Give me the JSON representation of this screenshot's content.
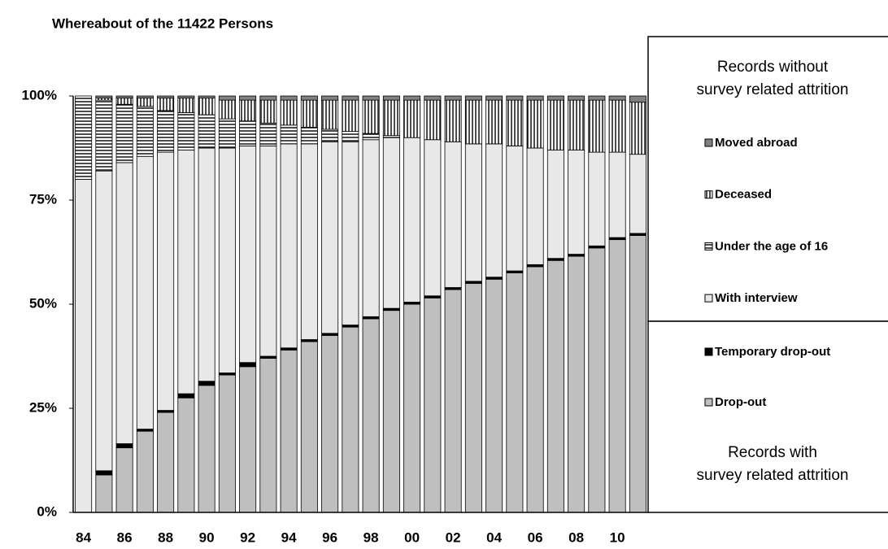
{
  "chart_data": {
    "type": "stacked_bar",
    "title": "Whereabout of the 11422 Persons",
    "categories": [
      "84",
      null,
      "86",
      null,
      "88",
      null,
      "90",
      null,
      "92",
      null,
      "94",
      null,
      "96",
      null,
      "98",
      null,
      "00",
      null,
      "02",
      null,
      "04",
      null,
      "06",
      null,
      "08",
      null,
      "10",
      null
    ],
    "series": [
      {
        "name": "Drop-out",
        "color": "#bfbfbf",
        "values": [
          0,
          9,
          15.5,
          19.5,
          24,
          27.5,
          30.5,
          33,
          35,
          37,
          39,
          41,
          42.5,
          44.5,
          46.5,
          48.5,
          50,
          51.5,
          53.5,
          55,
          56,
          57.5,
          59,
          60.5,
          61.5,
          63.5,
          65.5,
          66.5
        ]
      },
      {
        "name": "Temporary drop-out",
        "color": "#000000",
        "values": [
          0,
          1,
          1,
          0.5,
          0.5,
          1,
          1,
          0.5,
          1,
          0.5,
          0.5,
          0.5,
          0.5,
          0.5,
          0.5,
          0.5,
          0.5,
          0.5,
          0.5,
          0.5,
          0.5,
          0.5,
          0.5,
          0.5,
          0.5,
          0.5,
          0.5,
          0.5
        ]
      },
      {
        "name": "With interview",
        "color": "#e8e8e8",
        "values": [
          80,
          72,
          67.5,
          65.5,
          62,
          58.5,
          56,
          54,
          52,
          50.5,
          49,
          47,
          46,
          44,
          42.5,
          41,
          39.5,
          37.5,
          35,
          33,
          32,
          30,
          28,
          26,
          25,
          22.5,
          20.5,
          19
        ]
      },
      {
        "name": "Under the age of 16",
        "color": "#ffffff",
        "pattern": "horizontal",
        "values": [
          20,
          17,
          14,
          12,
          10,
          9,
          8,
          7,
          6,
          5.5,
          4.5,
          4,
          3,
          2.5,
          1.5,
          0.5,
          0,
          0,
          0,
          0,
          0,
          0,
          0,
          0,
          0,
          0,
          0,
          0
        ]
      },
      {
        "name": "Deceased",
        "color": "#ffffff",
        "pattern": "vertical",
        "values": [
          0,
          0.5,
          1.5,
          2,
          3,
          3.5,
          4,
          4.5,
          5,
          5.5,
          6,
          6.5,
          7,
          7.5,
          8,
          8.5,
          9,
          9.5,
          10,
          10.5,
          10.5,
          11,
          11.5,
          12,
          12,
          12.5,
          12.5,
          12.5
        ]
      },
      {
        "name": "Moved abroad",
        "color": "#808080",
        "values": [
          0,
          0.5,
          0.5,
          0.5,
          0.5,
          0.5,
          0.5,
          1,
          1,
          1,
          1,
          1,
          1,
          1,
          1,
          1,
          1,
          1,
          1,
          1,
          1,
          1,
          1,
          1,
          1,
          1,
          1,
          1.5
        ]
      }
    ],
    "ylim": [
      0,
      100
    ],
    "yticks": [
      {
        "value": 0,
        "label": "0%"
      },
      {
        "value": 25,
        "label": "25%"
      },
      {
        "value": 50,
        "label": "50%"
      },
      {
        "value": 75,
        "label": "75%"
      },
      {
        "value": 100,
        "label": "100%"
      }
    ],
    "legend_groups": [
      {
        "title": [
          "Records without",
          "survey related attrition"
        ],
        "title_position": "top",
        "series": [
          5,
          4,
          3,
          2
        ]
      },
      {
        "title": [
          "Records with",
          "survey related attrition"
        ],
        "title_position": "bottom",
        "series": [
          1,
          0
        ]
      }
    ]
  }
}
